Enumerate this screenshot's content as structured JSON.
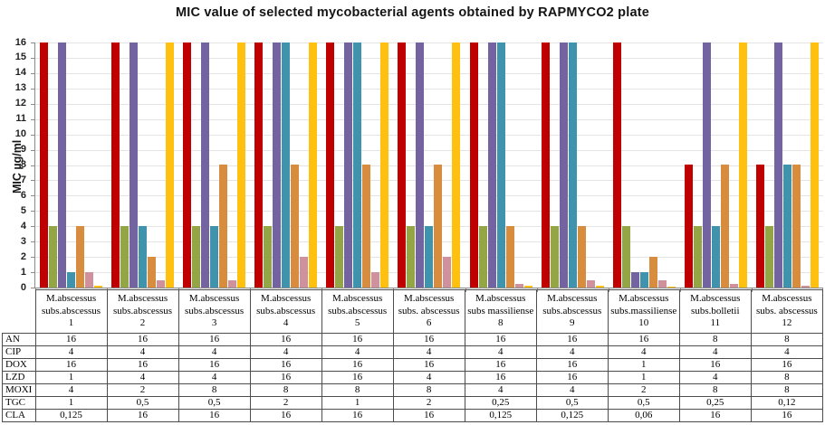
{
  "title": "MIC value of selected mycobacterial agents obtained by RAPMYCO2 plate",
  "chart_data": {
    "type": "bar",
    "title": "MIC value of selected mycobacterial agents obtained by RAPMYCO2 plate",
    "xlabel": "",
    "ylabel": "MIC µg/ml",
    "ylim": [
      0,
      16
    ],
    "ytick_step": 1,
    "grid": true,
    "legend_position": "none (series identified by data table below chart)",
    "categories": [
      {
        "label": "M.abscessus subs.abscessus",
        "num": "1"
      },
      {
        "label": "M.abscessus subs.abscessus",
        "num": "2"
      },
      {
        "label": "M.abscessus subs.abscessus",
        "num": "3"
      },
      {
        "label": "M.abscessus subs.abscessus",
        "num": "4"
      },
      {
        "label": "M.abscessus subs.abscessus",
        "num": "5"
      },
      {
        "label": "M.abscessus subs. abscessus",
        "num": "6"
      },
      {
        "label": "M.abscessus subs massiliense",
        "num": "8"
      },
      {
        "label": "M.abscessus subs.abscessus",
        "num": "9"
      },
      {
        "label": "M.abscessus subs.massiliense",
        "num": "10"
      },
      {
        "label": "M.abscessus subs.bolletii",
        "num": "11"
      },
      {
        "label": "M.abscessus subs. abscessus",
        "num": "12"
      }
    ],
    "series": [
      {
        "name": "AN",
        "color": "#c00000",
        "values": [
          16,
          16,
          16,
          16,
          16,
          16,
          16,
          16,
          16,
          8,
          8
        ],
        "table_values": [
          "16",
          "16",
          "16",
          "16",
          "16",
          "16",
          "16",
          "16",
          "16",
          "8",
          "8"
        ]
      },
      {
        "name": "CIP",
        "color": "#94a545",
        "values": [
          4,
          4,
          4,
          4,
          4,
          4,
          4,
          4,
          4,
          4,
          4
        ],
        "table_values": [
          "4",
          "4",
          "4",
          "4",
          "4",
          "4",
          "4",
          "4",
          "4",
          "4",
          "4"
        ]
      },
      {
        "name": "DOX",
        "color": "#7363a1",
        "values": [
          16,
          16,
          16,
          16,
          16,
          16,
          16,
          16,
          1,
          16,
          16
        ],
        "table_values": [
          "16",
          "16",
          "16",
          "16",
          "16",
          "16",
          "16",
          "16",
          "1",
          "16",
          "16"
        ]
      },
      {
        "name": "LZD",
        "color": "#4093ad",
        "values": [
          1,
          4,
          4,
          16,
          16,
          4,
          16,
          16,
          1,
          4,
          8
        ],
        "table_values": [
          "1",
          "4",
          "4",
          "16",
          "16",
          "4",
          "16",
          "16",
          "1",
          "4",
          "8"
        ]
      },
      {
        "name": "MOXI",
        "color": "#d88d3e",
        "values": [
          4,
          2,
          8,
          8,
          8,
          8,
          4,
          4,
          2,
          8,
          8
        ],
        "table_values": [
          "4",
          "2",
          "8",
          "8",
          "8",
          "8",
          "4",
          "4",
          "2",
          "8",
          "8"
        ]
      },
      {
        "name": "TGC",
        "color": "#cf929c",
        "values": [
          1,
          0.5,
          0.5,
          2,
          1,
          2,
          0.25,
          0.5,
          0.5,
          0.25,
          0.12
        ],
        "table_values": [
          "1",
          "0,5",
          "0,5",
          "2",
          "1",
          "2",
          "0,25",
          "0,5",
          "0,5",
          "0,25",
          "0,12"
        ]
      },
      {
        "name": "CLA",
        "color": "#ffc010",
        "values": [
          0.125,
          16,
          16,
          16,
          16,
          16,
          0.125,
          0.125,
          0.06,
          16,
          16
        ],
        "table_values": [
          "0,125",
          "16",
          "16",
          "16",
          "16",
          "16",
          "0,125",
          "0,125",
          "0,06",
          "16",
          "16"
        ]
      }
    ]
  }
}
